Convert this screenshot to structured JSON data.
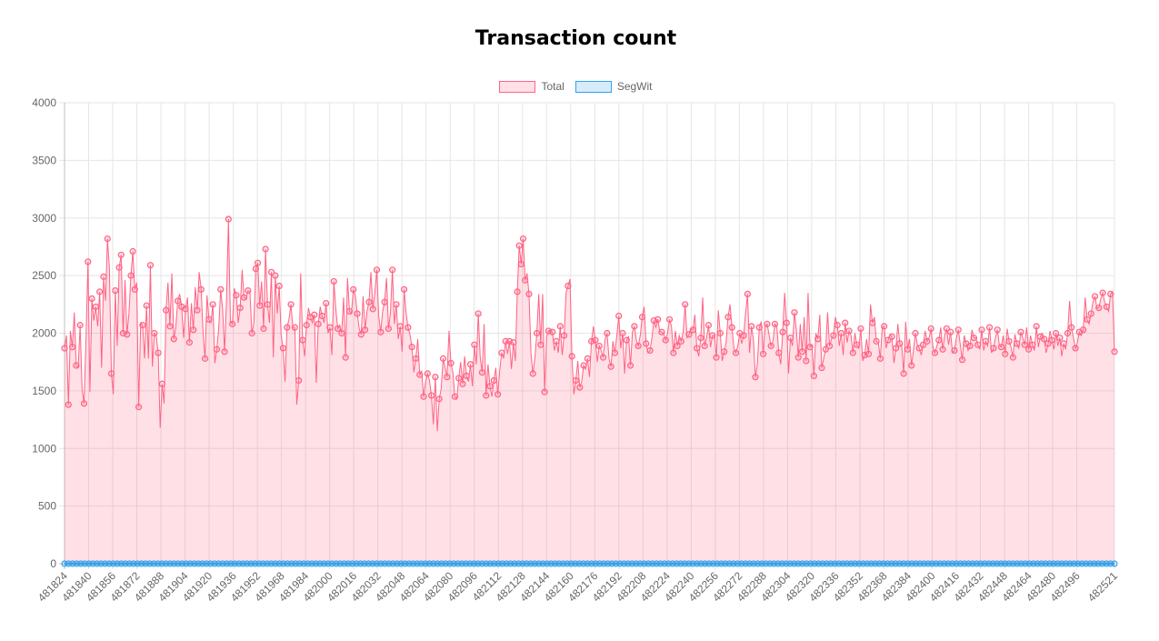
{
  "chart_data": {
    "type": "line",
    "title": "Transaction count",
    "x_start": 481824,
    "x_end": 482521,
    "x_step": 16,
    "ylim": [
      0,
      4000
    ],
    "y_ticks": [
      0,
      500,
      1000,
      1500,
      2000,
      2500,
      3000,
      3500,
      4000
    ],
    "x_tick_labels": [
      "481824",
      "481840",
      "481856",
      "481872",
      "481888",
      "481904",
      "481920",
      "481936",
      "481952",
      "481968",
      "481984",
      "482000",
      "482016",
      "482032",
      "482048",
      "482064",
      "482080",
      "482096",
      "482112",
      "482128",
      "482144",
      "482160",
      "482176",
      "482192",
      "482208",
      "482224",
      "482240",
      "482256",
      "482272",
      "482288",
      "482304",
      "482320",
      "482336",
      "482352",
      "482368",
      "482384",
      "482400",
      "482416",
      "482432",
      "482448",
      "482464",
      "482480",
      "482496",
      "482521"
    ],
    "grid": true,
    "legend_position": "top",
    "series": [
      {
        "name": "Total",
        "color": "#ff6384",
        "fill": "rgba(255,99,132,0.2)",
        "values": [
          1870,
          1980,
          1380,
          2020,
          1880,
          2180,
          1720,
          1700,
          2070,
          1510,
          1390,
          1950,
          2620,
          1490,
          2300,
          2110,
          2230,
          2060,
          2360,
          1700,
          2490,
          2280,
          2820,
          2560,
          1650,
          1470,
          2370,
          1890,
          2570,
          2680,
          2000,
          2460,
          1990,
          2170,
          2500,
          2710,
          2380,
          2440,
          1360,
          2090,
          2070,
          1780,
          2240,
          1780,
          2590,
          1710,
          2000,
          1980,
          1830,
          1180,
          1560,
          1390,
          2200,
          2440,
          2060,
          2520,
          1950,
          2050,
          2280,
          2340,
          2230,
          1960,
          2210,
          2310,
          1920,
          2260,
          2030,
          2400,
          2200,
          2530,
          2380,
          2000,
          1780,
          2330,
          2120,
          2090,
          2250,
          1740,
          1860,
          2040,
          2380,
          2210,
          1840,
          2290,
          2990,
          2100,
          2080,
          2390,
          2330,
          2090,
          2220,
          2550,
          2310,
          2300,
          2370,
          2360,
          2000,
          2090,
          2560,
          2610,
          2240,
          2450,
          2040,
          2730,
          2250,
          2090,
          2530,
          1790,
          2500,
          2170,
          2410,
          1980,
          1870,
          1580,
          2050,
          2120,
          2250,
          2050,
          2050,
          1380,
          1590,
          2520,
          1940,
          1800,
          2070,
          2220,
          2140,
          2090,
          2160,
          1570,
          2080,
          2230,
          2150,
          2090,
          2260,
          2000,
          2050,
          1810,
          2450,
          2210,
          2040,
          2070,
          2000,
          2310,
          1790,
          2480,
          2190,
          2170,
          2380,
          2330,
          2170,
          2040,
          1990,
          2320,
          2030,
          2190,
          2270,
          2530,
          2210,
          2350,
          2550,
          2150,
          2010,
          2190,
          2270,
          2480,
          2040,
          2180,
          2550,
          2080,
          2250,
          1950,
          2060,
          1840,
          2380,
          2180,
          2050,
          1990,
          1880,
          1660,
          1780,
          1950,
          1640,
          1670,
          1450,
          1580,
          1650,
          1590,
          1460,
          1210,
          1620,
          1150,
          1430,
          1520,
          1780,
          1700,
          1620,
          2020,
          1740,
          1660,
          1450,
          1430,
          1610,
          1750,
          1560,
          1800,
          1630,
          1580,
          1730,
          1540,
          1900,
          1730,
          2170,
          1790,
          1660,
          2080,
          1460,
          1730,
          1540,
          1450,
          1590,
          1700,
          1470,
          1680,
          1830,
          1780,
          1930,
          1820,
          1930,
          1690,
          1920,
          1760,
          2360,
          2760,
          2600,
          2820,
          2460,
          2520,
          2340,
          1830,
          1650,
          1780,
          2000,
          2340,
          1900,
          2340,
          1490,
          1970,
          2020,
          2030,
          2010,
          1850,
          1930,
          1830,
          2060,
          1810,
          1980,
          2350,
          2410,
          2470,
          1800,
          1470,
          1590,
          1760,
          1530,
          1580,
          1720,
          1690,
          1780,
          1620,
          1930,
          2060,
          1940,
          1750,
          1890,
          1850,
          1790,
          1950,
          2000,
          1780,
          1710,
          1930,
          1830,
          1980,
          2150,
          1870,
          2000,
          1650,
          1940,
          1970,
          1720,
          2010,
          2060,
          1940,
          1890,
          1980,
          2140,
          2230,
          1910,
          1830,
          1850,
          1960,
          2110,
          2050,
          2120,
          2020,
          2010,
          2000,
          1940,
          2000,
          2120,
          2060,
          1830,
          2020,
          1890,
          1980,
          1930,
          2010,
          2250,
          1960,
          1990,
          2040,
          2030,
          2160,
          1870,
          1800,
          1960,
          2310,
          1890,
          1960,
          2070,
          1880,
          1980,
          1980,
          1790,
          2200,
          2000,
          1760,
          1840,
          1920,
          2140,
          2250,
          2050,
          1870,
          1830,
          1890,
          2000,
          1910,
          1980,
          2180,
          2340,
          1830,
          2060,
          1950,
          1620,
          1730,
          2050,
          2100,
          1820,
          2060,
          2080,
          1990,
          1890,
          1930,
          2080,
          2060,
          1830,
          1730,
          2010,
          2350,
          2090,
          1650,
          1960,
          1890,
          2180,
          2030,
          1790,
          2080,
          1840,
          2140,
          1760,
          2350,
          1880,
          1900,
          1630,
          2000,
          1950,
          2160,
          1700,
          1780,
          1860,
          2180,
          1890,
          1950,
          1980,
          2140,
          2070,
          1890,
          2000,
          1810,
          2090,
          1920,
          2020,
          1980,
          1830,
          2000,
          1900,
          1870,
          2040,
          1760,
          1810,
          1950,
          1820,
          2250,
          2090,
          2140,
          1930,
          1920,
          1780,
          2050,
          2060,
          1870,
          1940,
          1990,
          1970,
          1740,
          1870,
          2080,
          1910,
          1890,
          1650,
          2100,
          1860,
          1950,
          1720,
          1850,
          2000,
          1900,
          1870,
          1810,
          1900,
          2020,
          1930,
          1960,
          2040,
          1880,
          1830,
          1890,
          1940,
          2050,
          1860,
          1980,
          2040,
          1900,
          2010,
          1830,
          1850,
          1960,
          2030,
          1900,
          1770,
          1980,
          1910,
          1850,
          1890,
          2030,
          1960,
          1960,
          1900,
          1860,
          2030,
          1850,
          1930,
          1890,
          2050,
          1830,
          1870,
          1960,
          2030,
          1900,
          1880,
          1980,
          1820,
          2040,
          1930,
          1880,
          1790,
          1990,
          1910,
          1870,
          2010,
          1960,
          1900,
          2050,
          1860,
          1980,
          1900,
          1850,
          2060,
          1880,
          1970,
          2000,
          1950,
          1830,
          1910,
          2020,
          1940,
          1860,
          2000,
          1890,
          1960,
          1800,
          1910,
          1860,
          2000,
          2280,
          2050,
          1960,
          1870,
          1920,
          2010,
          1980,
          2030,
          2310,
          2120,
          2080,
          2170,
          2270,
          2320,
          2220,
          2220,
          2300,
          2350,
          2270,
          2230,
          2190,
          2340,
          2360,
          1840
        ]
      },
      {
        "name": "SegWit",
        "color": "#36a2eb",
        "fill": "rgba(54,162,235,0.2)",
        "values": []
      }
    ]
  }
}
